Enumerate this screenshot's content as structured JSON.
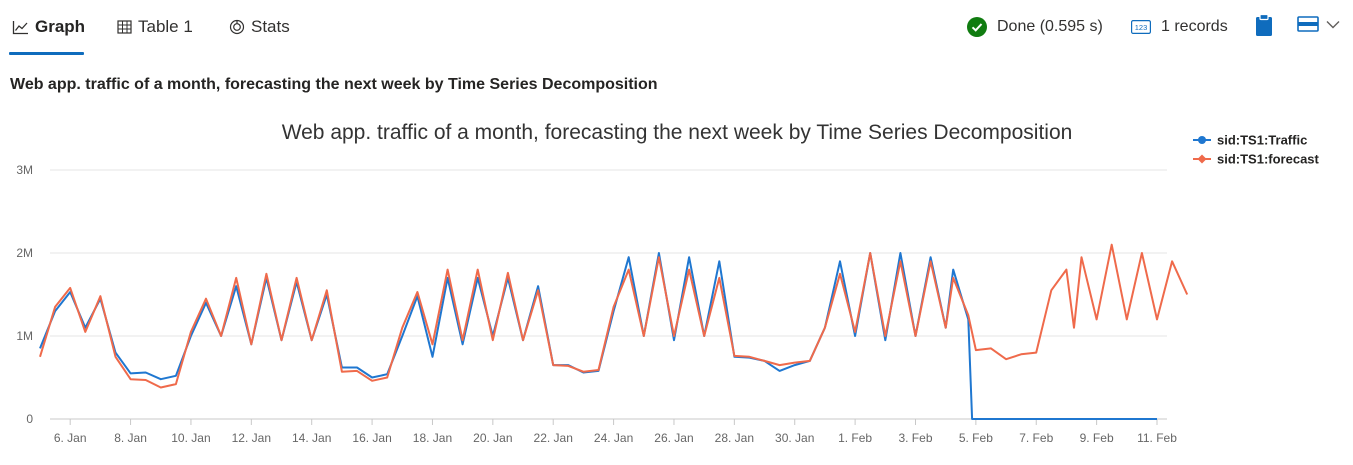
{
  "tabs": [
    {
      "label": "Graph",
      "active": true,
      "icon": "line-chart-icon"
    },
    {
      "label": "Table 1",
      "active": false,
      "icon": "table-icon"
    },
    {
      "label": "Stats",
      "active": false,
      "icon": "stats-icon"
    }
  ],
  "toolbar": {
    "status_text": "Done (0.595 s)",
    "status_icon": "check-circle-icon",
    "records_text": "1 records",
    "records_icon": "number-badge-icon",
    "clipboard_icon": "clipboard-icon",
    "view_icon": "layout-icon",
    "dropdown_icon": "chevron-down-icon"
  },
  "page_title": "Web app. traffic of a month, forecasting the next week by Time Series Decomposition",
  "colors": {
    "accent": "#0f6cbd",
    "traffic": "#1f77d0",
    "forecast": "#ef6a4b",
    "success": "#107c10",
    "grid": "#e6e6e6"
  },
  "chart_data": {
    "type": "line",
    "title": "Web app. traffic of a month, forecasting the next week by Time Series Decomposition",
    "xlabel": "",
    "ylabel": "",
    "xlim": [
      "2017-01-05",
      "2017-02-11"
    ],
    "ylim": [
      0,
      3000000
    ],
    "yticks": [
      0,
      1000000,
      2000000,
      3000000
    ],
    "ytick_labels": [
      "0",
      "1M",
      "2M",
      "3M"
    ],
    "xtick_labels": [
      "6. Jan",
      "8. Jan",
      "10. Jan",
      "12. Jan",
      "14. Jan",
      "16. Jan",
      "18. Jan",
      "20. Jan",
      "22. Jan",
      "24. Jan",
      "26. Jan",
      "28. Jan",
      "30. Jan",
      "1. Feb",
      "3. Feb",
      "5. Feb",
      "7. Feb",
      "9. Feb",
      "11. Feb"
    ],
    "xtick_dates": [
      "2017-01-06",
      "2017-01-08",
      "2017-01-10",
      "2017-01-12",
      "2017-01-14",
      "2017-01-16",
      "2017-01-18",
      "2017-01-20",
      "2017-01-22",
      "2017-01-24",
      "2017-01-26",
      "2017-01-28",
      "2017-01-30",
      "2017-02-01",
      "2017-02-03",
      "2017-02-05",
      "2017-02-07",
      "2017-02-09",
      "2017-02-11"
    ],
    "grid": true,
    "legend_position": "top-right",
    "series": [
      {
        "name": "sid:TS1:Traffic",
        "color": "#1f77d0",
        "marker": "circle",
        "points": [
          [
            "2017-01-05T00:00",
            850000
          ],
          [
            "2017-01-05T12:00",
            1300000
          ],
          [
            "2017-01-06T00:00",
            1530000
          ],
          [
            "2017-01-06T12:00",
            1100000
          ],
          [
            "2017-01-07T00:00",
            1450000
          ],
          [
            "2017-01-07T12:00",
            800000
          ],
          [
            "2017-01-08T00:00",
            550000
          ],
          [
            "2017-01-08T12:00",
            560000
          ],
          [
            "2017-01-09T00:00",
            480000
          ],
          [
            "2017-01-09T12:00",
            520000
          ],
          [
            "2017-01-10T00:00",
            1000000
          ],
          [
            "2017-01-10T12:00",
            1400000
          ],
          [
            "2017-01-11T00:00",
            1000000
          ],
          [
            "2017-01-11T12:00",
            1600000
          ],
          [
            "2017-01-12T00:00",
            900000
          ],
          [
            "2017-01-12T12:00",
            1700000
          ],
          [
            "2017-01-13T00:00",
            950000
          ],
          [
            "2017-01-13T12:00",
            1650000
          ],
          [
            "2017-01-14T00:00",
            950000
          ],
          [
            "2017-01-14T12:00",
            1500000
          ],
          [
            "2017-01-15T00:00",
            620000
          ],
          [
            "2017-01-15T12:00",
            620000
          ],
          [
            "2017-01-16T00:00",
            500000
          ],
          [
            "2017-01-16T12:00",
            540000
          ],
          [
            "2017-01-17T00:00",
            1000000
          ],
          [
            "2017-01-17T12:00",
            1480000
          ],
          [
            "2017-01-18T00:00",
            750000
          ],
          [
            "2017-01-18T12:00",
            1700000
          ],
          [
            "2017-01-19T00:00",
            900000
          ],
          [
            "2017-01-19T12:00",
            1700000
          ],
          [
            "2017-01-20T00:00",
            1000000
          ],
          [
            "2017-01-20T12:00",
            1700000
          ],
          [
            "2017-01-21T00:00",
            950000
          ],
          [
            "2017-01-21T12:00",
            1600000
          ],
          [
            "2017-01-22T00:00",
            650000
          ],
          [
            "2017-01-22T12:00",
            650000
          ],
          [
            "2017-01-23T00:00",
            560000
          ],
          [
            "2017-01-23T12:00",
            580000
          ],
          [
            "2017-01-24T00:00",
            1300000
          ],
          [
            "2017-01-24T12:00",
            1950000
          ],
          [
            "2017-01-25T00:00",
            1000000
          ],
          [
            "2017-01-25T12:00",
            2000000
          ],
          [
            "2017-01-26T00:00",
            950000
          ],
          [
            "2017-01-26T12:00",
            1950000
          ],
          [
            "2017-01-27T00:00",
            1000000
          ],
          [
            "2017-01-27T12:00",
            1900000
          ],
          [
            "2017-01-28T00:00",
            750000
          ],
          [
            "2017-01-28T12:00",
            740000
          ],
          [
            "2017-01-29T00:00",
            700000
          ],
          [
            "2017-01-29T12:00",
            580000
          ],
          [
            "2017-01-30T00:00",
            650000
          ],
          [
            "2017-01-30T12:00",
            700000
          ],
          [
            "2017-01-31T00:00",
            1100000
          ],
          [
            "2017-01-31T12:00",
            1900000
          ],
          [
            "2017-02-01T00:00",
            1000000
          ],
          [
            "2017-02-01T12:00",
            2000000
          ],
          [
            "2017-02-02T00:00",
            950000
          ],
          [
            "2017-02-02T12:00",
            2000000
          ],
          [
            "2017-02-03T00:00",
            1000000
          ],
          [
            "2017-02-03T12:00",
            1950000
          ],
          [
            "2017-02-04T00:00",
            1100000
          ],
          [
            "2017-02-04T06:00",
            1800000
          ],
          [
            "2017-02-04T18:00",
            1200000
          ],
          [
            "2017-02-04T21:00",
            0
          ],
          [
            "2017-02-11T00:00",
            0
          ]
        ]
      },
      {
        "name": "sid:TS1:forecast",
        "color": "#ef6a4b",
        "marker": "diamond",
        "points": [
          [
            "2017-01-05T00:00",
            750000
          ],
          [
            "2017-01-05T12:00",
            1350000
          ],
          [
            "2017-01-06T00:00",
            1580000
          ],
          [
            "2017-01-06T12:00",
            1050000
          ],
          [
            "2017-01-07T00:00",
            1480000
          ],
          [
            "2017-01-07T12:00",
            750000
          ],
          [
            "2017-01-08T00:00",
            480000
          ],
          [
            "2017-01-08T12:00",
            470000
          ],
          [
            "2017-01-09T00:00",
            380000
          ],
          [
            "2017-01-09T12:00",
            420000
          ],
          [
            "2017-01-10T00:00",
            1050000
          ],
          [
            "2017-01-10T12:00",
            1450000
          ],
          [
            "2017-01-11T00:00",
            1000000
          ],
          [
            "2017-01-11T12:00",
            1700000
          ],
          [
            "2017-01-12T00:00",
            900000
          ],
          [
            "2017-01-12T12:00",
            1750000
          ],
          [
            "2017-01-13T00:00",
            950000
          ],
          [
            "2017-01-13T12:00",
            1700000
          ],
          [
            "2017-01-14T00:00",
            950000
          ],
          [
            "2017-01-14T12:00",
            1550000
          ],
          [
            "2017-01-15T00:00",
            570000
          ],
          [
            "2017-01-15T12:00",
            580000
          ],
          [
            "2017-01-16T00:00",
            460000
          ],
          [
            "2017-01-16T12:00",
            500000
          ],
          [
            "2017-01-17T00:00",
            1100000
          ],
          [
            "2017-01-17T12:00",
            1530000
          ],
          [
            "2017-01-18T00:00",
            900000
          ],
          [
            "2017-01-18T12:00",
            1800000
          ],
          [
            "2017-01-19T00:00",
            950000
          ],
          [
            "2017-01-19T12:00",
            1800000
          ],
          [
            "2017-01-20T00:00",
            950000
          ],
          [
            "2017-01-20T12:00",
            1760000
          ],
          [
            "2017-01-21T00:00",
            950000
          ],
          [
            "2017-01-21T12:00",
            1550000
          ],
          [
            "2017-01-22T00:00",
            650000
          ],
          [
            "2017-01-22T12:00",
            640000
          ],
          [
            "2017-01-23T00:00",
            570000
          ],
          [
            "2017-01-23T12:00",
            590000
          ],
          [
            "2017-01-24T00:00",
            1350000
          ],
          [
            "2017-01-24T12:00",
            1800000
          ],
          [
            "2017-01-25T00:00",
            1000000
          ],
          [
            "2017-01-25T12:00",
            1950000
          ],
          [
            "2017-01-26T00:00",
            1000000
          ],
          [
            "2017-01-26T12:00",
            1800000
          ],
          [
            "2017-01-27T00:00",
            1000000
          ],
          [
            "2017-01-27T12:00",
            1700000
          ],
          [
            "2017-01-28T00:00",
            760000
          ],
          [
            "2017-01-28T12:00",
            750000
          ],
          [
            "2017-01-29T00:00",
            700000
          ],
          [
            "2017-01-29T12:00",
            650000
          ],
          [
            "2017-01-30T00:00",
            680000
          ],
          [
            "2017-01-30T12:00",
            700000
          ],
          [
            "2017-01-31T00:00",
            1100000
          ],
          [
            "2017-01-31T12:00",
            1750000
          ],
          [
            "2017-02-01T00:00",
            1050000
          ],
          [
            "2017-02-01T12:00",
            2000000
          ],
          [
            "2017-02-02T00:00",
            1000000
          ],
          [
            "2017-02-02T12:00",
            1900000
          ],
          [
            "2017-02-03T00:00",
            1000000
          ],
          [
            "2017-02-03T12:00",
            1900000
          ],
          [
            "2017-02-04T00:00",
            1100000
          ],
          [
            "2017-02-04T06:00",
            1700000
          ],
          [
            "2017-02-04T18:00",
            1250000
          ],
          [
            "2017-02-05T00:00",
            830000
          ],
          [
            "2017-02-05T12:00",
            850000
          ],
          [
            "2017-02-06T00:00",
            720000
          ],
          [
            "2017-02-06T12:00",
            780000
          ],
          [
            "2017-02-07T00:00",
            800000
          ],
          [
            "2017-02-07T12:00",
            1550000
          ],
          [
            "2017-02-08T00:00",
            1800000
          ],
          [
            "2017-02-08T06:00",
            1100000
          ],
          [
            "2017-02-08T12:00",
            1950000
          ],
          [
            "2017-02-09T00:00",
            1200000
          ],
          [
            "2017-02-09T12:00",
            2100000
          ],
          [
            "2017-02-10T00:00",
            1200000
          ],
          [
            "2017-02-10T12:00",
            2000000
          ],
          [
            "2017-02-11T00:00",
            1200000
          ],
          [
            "2017-02-11T12:00",
            1900000
          ],
          [
            "2017-02-12T00:00",
            1500000
          ]
        ]
      }
    ]
  }
}
